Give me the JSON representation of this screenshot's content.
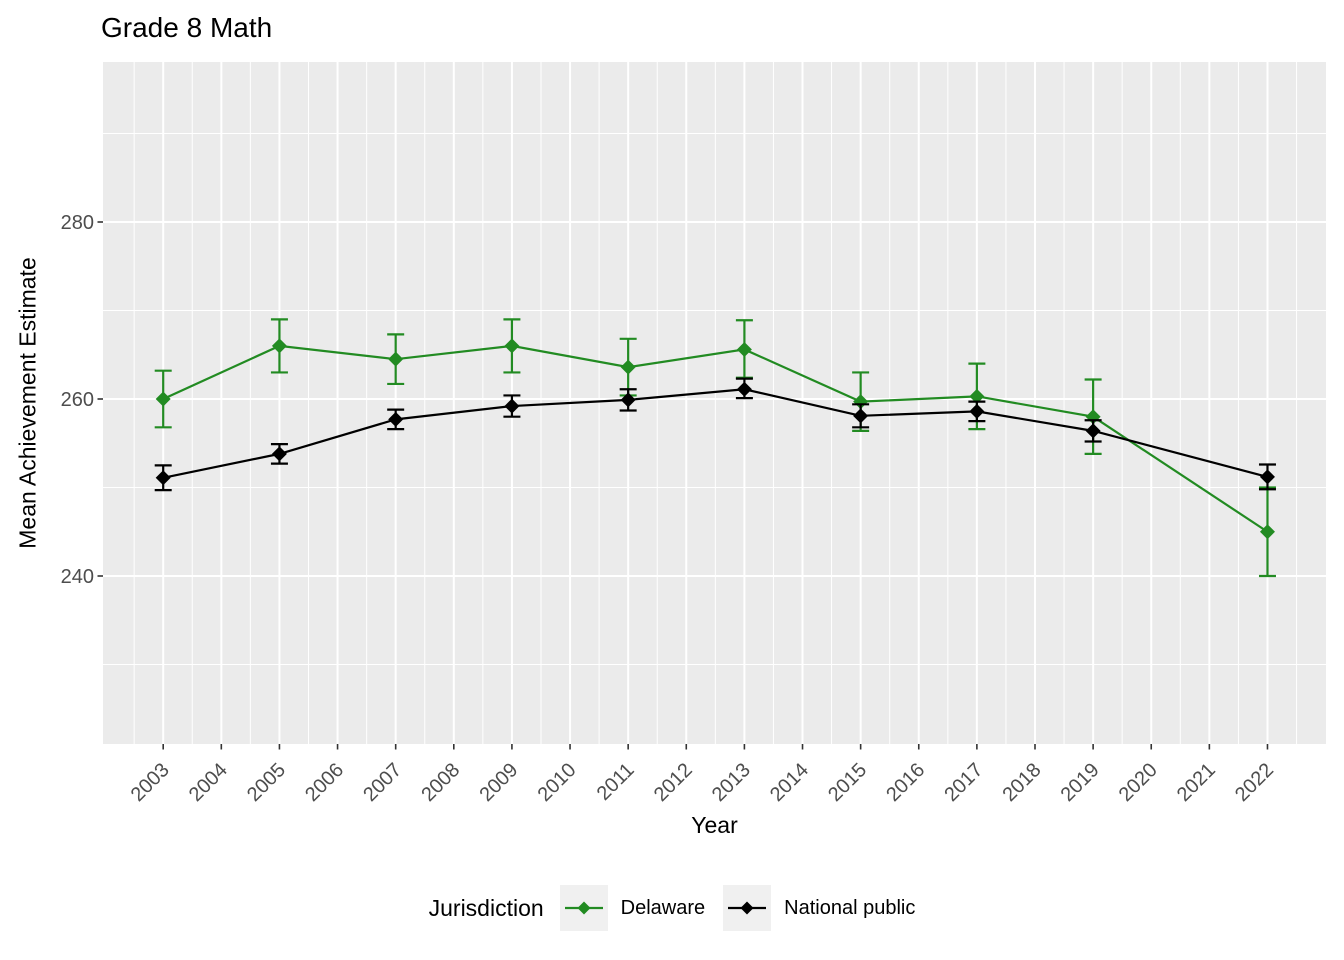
{
  "chart_data": {
    "type": "line",
    "title": "Grade 8 Math",
    "xlabel": "Year",
    "ylabel": "Mean Achievement Estimate",
    "legend": {
      "title": "Jurisdiction",
      "position": "bottom",
      "entries": [
        "Delaware",
        "National public"
      ]
    },
    "x_ticks": [
      2003,
      2004,
      2005,
      2006,
      2007,
      2008,
      2009,
      2010,
      2011,
      2012,
      2013,
      2014,
      2015,
      2016,
      2017,
      2018,
      2019,
      2020,
      2021,
      2022
    ],
    "y_ticks": [
      240,
      260,
      280
    ],
    "y_minor_gridlines": [
      230,
      250,
      270,
      290
    ],
    "xlim": [
      2002,
      2023.1
    ],
    "ylim": [
      221,
      298
    ],
    "grid": "white major and minor gridlines on gray panel",
    "marker": "diamond",
    "error_bars": "95% CI with caps",
    "series": [
      {
        "name": "Delaware",
        "color": "#228B22",
        "x": [
          2003,
          2005,
          2007,
          2009,
          2011,
          2013,
          2015,
          2017,
          2019,
          2022
        ],
        "values": [
          260.0,
          266.0,
          264.5,
          266.0,
          263.6,
          265.6,
          259.7,
          260.3,
          258.0,
          245.0
        ],
        "ci_lower": [
          256.8,
          263.0,
          261.7,
          263.0,
          260.4,
          262.4,
          256.4,
          256.6,
          253.8,
          240.0
        ],
        "ci_upper": [
          263.2,
          269.0,
          267.3,
          269.0,
          266.8,
          268.9,
          263.0,
          264.0,
          262.2,
          250.0
        ]
      },
      {
        "name": "National public",
        "color": "#000000",
        "x": [
          2003,
          2005,
          2007,
          2009,
          2011,
          2013,
          2015,
          2017,
          2019,
          2022
        ],
        "values": [
          251.1,
          253.8,
          257.7,
          259.2,
          259.9,
          261.1,
          258.1,
          258.6,
          256.4,
          251.2
        ],
        "ci_lower": [
          249.7,
          252.7,
          256.6,
          258.0,
          258.7,
          260.1,
          256.8,
          257.5,
          255.2,
          249.8
        ],
        "ci_upper": [
          252.5,
          254.9,
          258.8,
          260.4,
          261.1,
          262.3,
          259.4,
          259.7,
          257.6,
          252.6
        ]
      }
    ]
  },
  "colors": {
    "background": "#FFFFFF",
    "panel_background": "#EBEBEB",
    "gridline": "#FFFFFF",
    "tick_mark": "#333333",
    "tick_label": "#4D4D4D",
    "text": "#000000",
    "legend_key_background": "#F0F0F0"
  }
}
